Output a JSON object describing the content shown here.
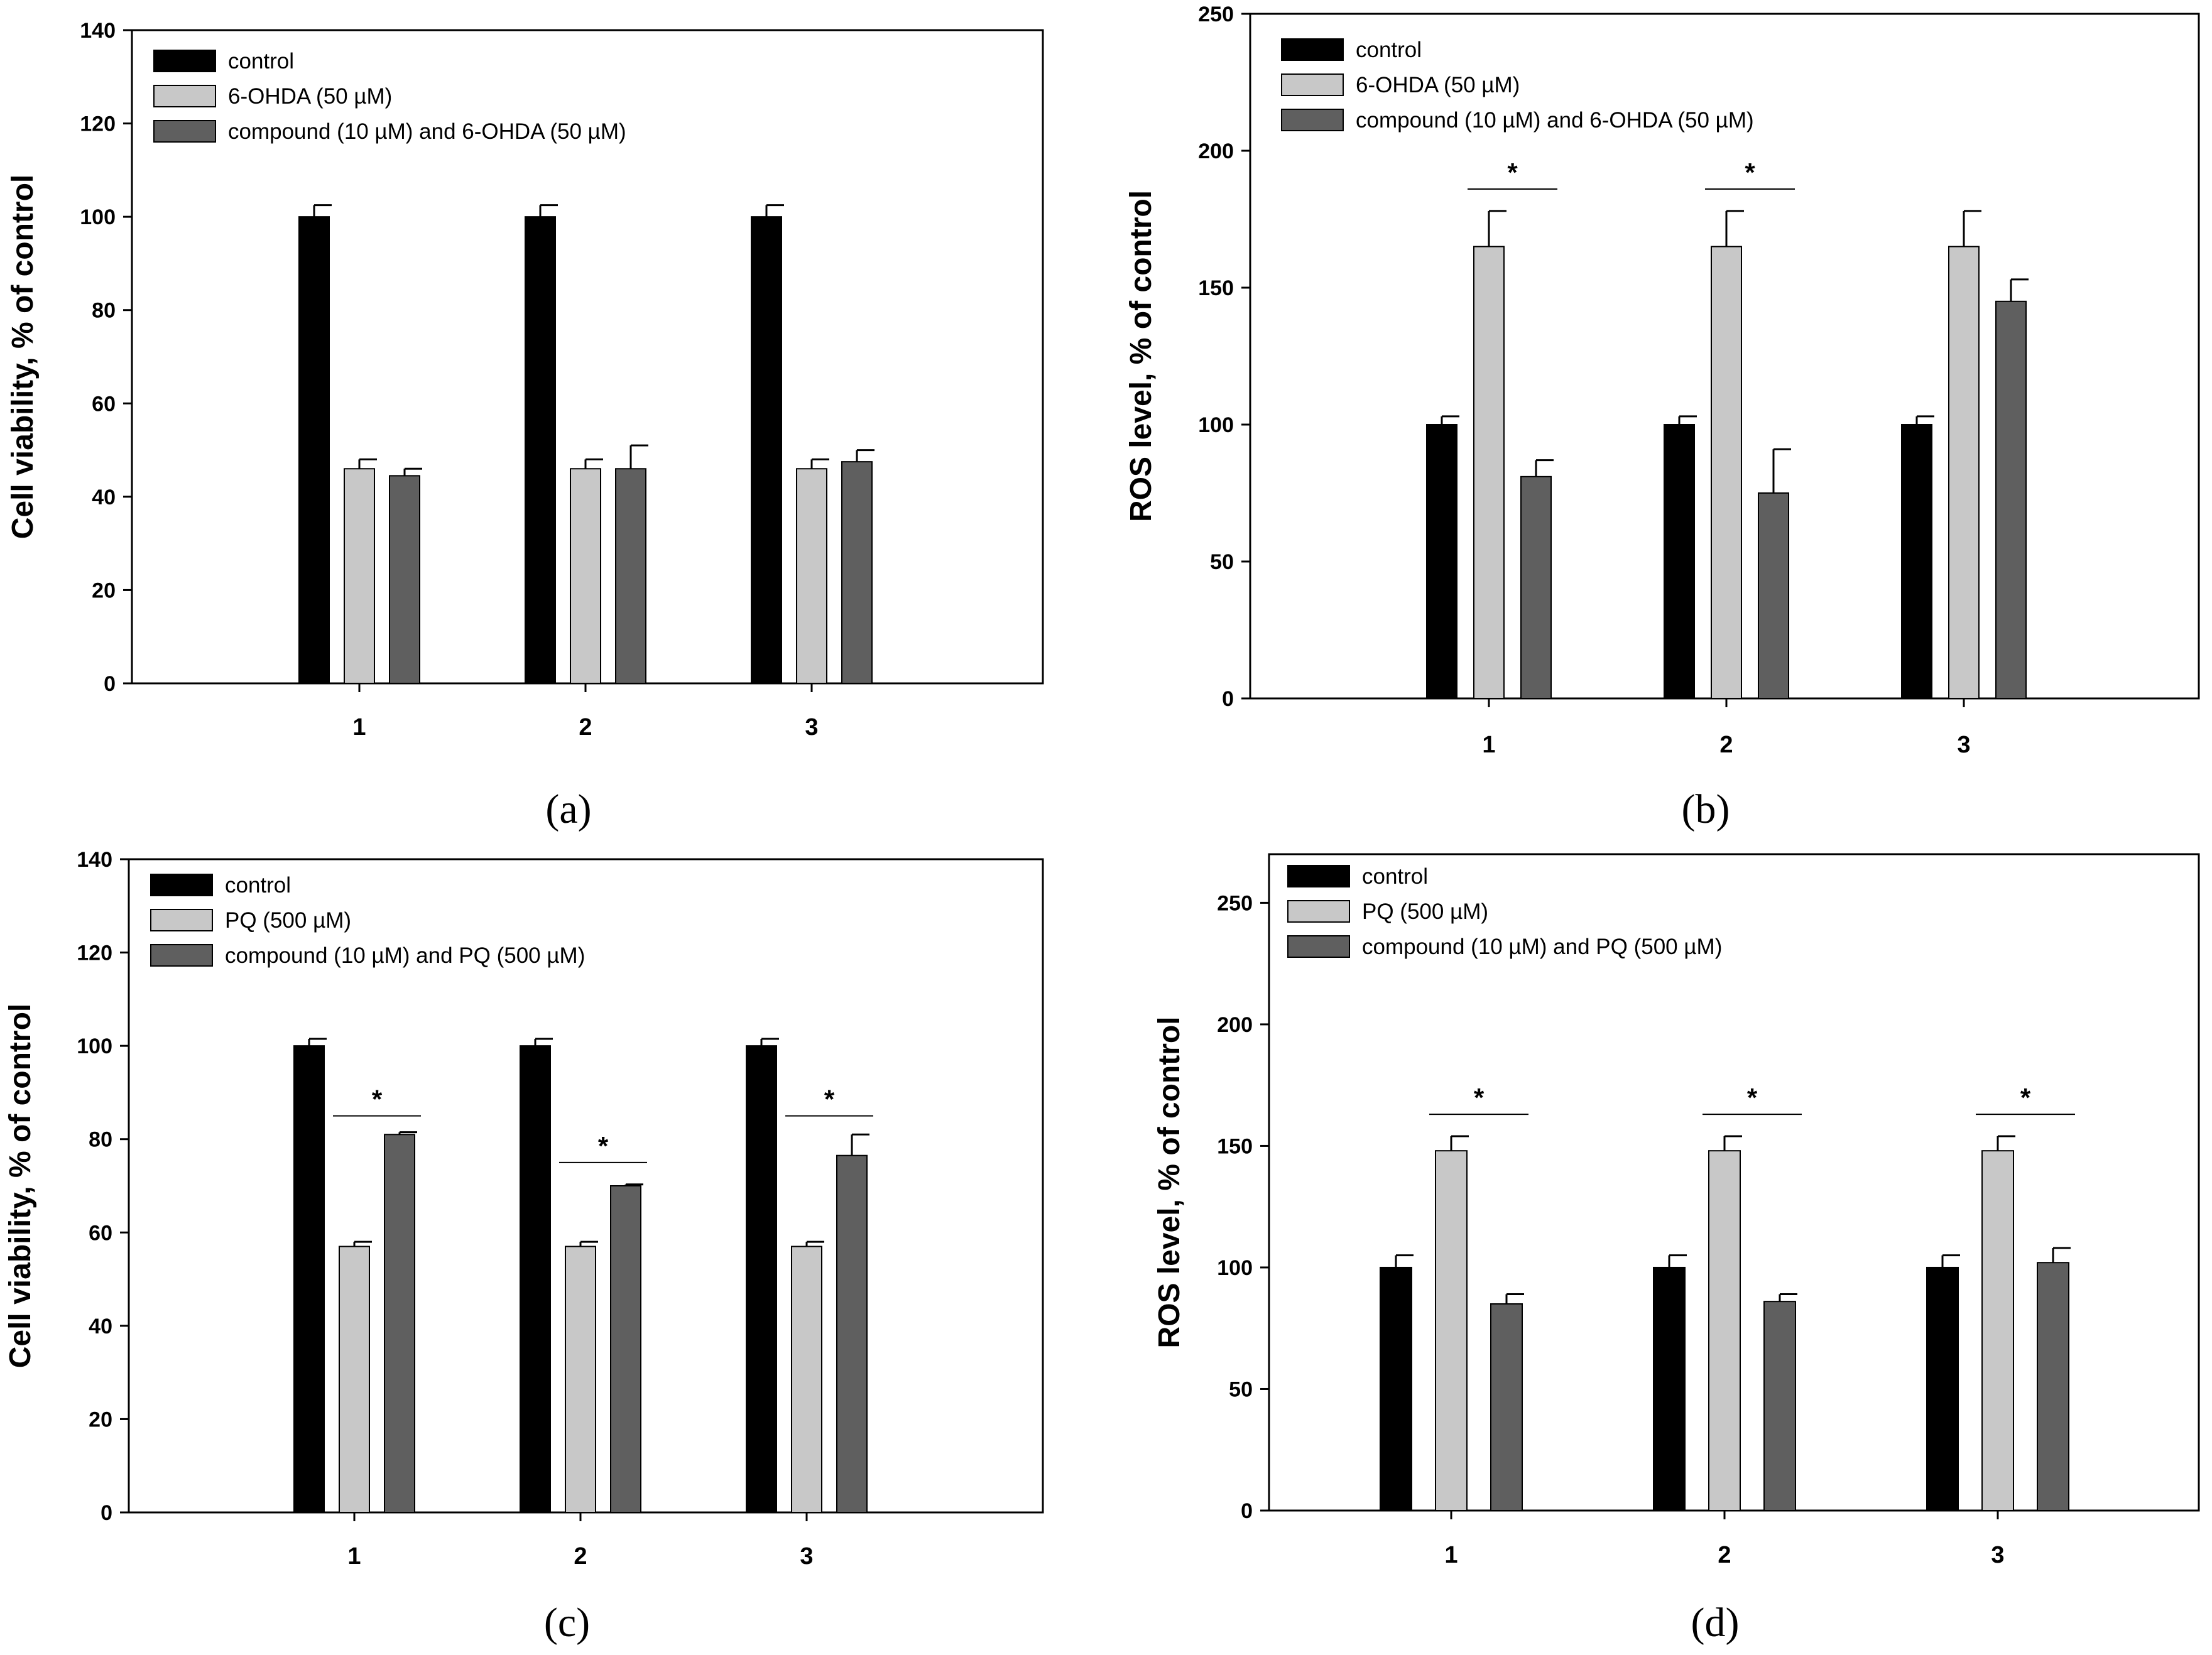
{
  "chart_data": [
    {
      "id": "a",
      "type": "bar",
      "panel_label": "(a)",
      "ylabel": "Cell viability, % of control",
      "ylim": [
        0,
        140
      ],
      "yticks": [
        0,
        20,
        40,
        60,
        80,
        100,
        120,
        140
      ],
      "categories": [
        "1",
        "2",
        "3"
      ],
      "series": [
        {
          "name": "control",
          "color": "#000000",
          "values": [
            100,
            100,
            100
          ],
          "errors": [
            2.5,
            2.5,
            2.5
          ]
        },
        {
          "name": "6-OHDA (50 µM)",
          "color": "#c8c8c8",
          "values": [
            46,
            46,
            46
          ],
          "errors": [
            2,
            2,
            2
          ]
        },
        {
          "name": "compound (10 µM) and 6-OHDA (50 µM)",
          "color": "#5f5f5f",
          "values": [
            44.5,
            46,
            47.5
          ],
          "errors": [
            1.5,
            5,
            2.5
          ]
        }
      ],
      "significance": []
    },
    {
      "id": "b",
      "type": "bar",
      "panel_label": "(b)",
      "ylabel": "ROS level, % of control",
      "ylim": [
        0,
        250
      ],
      "yticks": [
        0,
        50,
        100,
        150,
        200,
        250
      ],
      "categories": [
        "1",
        "2",
        "3"
      ],
      "series": [
        {
          "name": "control",
          "color": "#000000",
          "values": [
            100,
            100,
            100
          ],
          "errors": [
            3,
            3,
            3
          ]
        },
        {
          "name": "6-OHDA (50 µM)",
          "color": "#c8c8c8",
          "values": [
            165,
            165,
            165
          ],
          "errors": [
            13,
            13,
            13
          ]
        },
        {
          "name": "compound (10 µM) and 6-OHDA (50 µM)",
          "color": "#5f5f5f",
          "values": [
            81,
            75,
            145
          ],
          "errors": [
            6,
            16,
            8
          ]
        }
      ],
      "significance": [
        {
          "category": 0,
          "label": "*",
          "y": 186
        },
        {
          "category": 1,
          "label": "*",
          "y": 186
        }
      ]
    },
    {
      "id": "c",
      "type": "bar",
      "panel_label": "(c)",
      "ylabel": "Cell viability, % of control",
      "ylim": [
        0,
        140
      ],
      "yticks": [
        0,
        20,
        40,
        60,
        80,
        100,
        120,
        140
      ],
      "categories": [
        "1",
        "2",
        "3"
      ],
      "series": [
        {
          "name": "control",
          "color": "#000000",
          "values": [
            100,
            100,
            100
          ],
          "errors": [
            1.5,
            1.5,
            1.5
          ]
        },
        {
          "name": "PQ (500 µM)",
          "color": "#c8c8c8",
          "values": [
            57,
            57,
            57
          ],
          "errors": [
            1,
            1,
            1
          ]
        },
        {
          "name": "compound (10 µM) and PQ (500 µM)",
          "color": "#5f5f5f",
          "values": [
            81,
            70,
            76.5
          ],
          "errors": [
            0.5,
            0.3,
            4.5
          ]
        }
      ],
      "significance": [
        {
          "category": 0,
          "label": "*",
          "y": 85
        },
        {
          "category": 1,
          "label": "*",
          "y": 75
        },
        {
          "category": 2,
          "label": "*",
          "y": 85
        }
      ]
    },
    {
      "id": "d",
      "type": "bar",
      "panel_label": "(d)",
      "ylabel": "ROS level, % of control",
      "ylim": [
        0,
        270
      ],
      "yticks": [
        0,
        50,
        100,
        150,
        200,
        250
      ],
      "categories": [
        "1",
        "2",
        "3"
      ],
      "series": [
        {
          "name": "control",
          "color": "#000000",
          "values": [
            100,
            100,
            100
          ],
          "errors": [
            5,
            5,
            5
          ]
        },
        {
          "name": "PQ (500 µM)",
          "color": "#c8c8c8",
          "values": [
            148,
            148,
            148
          ],
          "errors": [
            6,
            6,
            6
          ]
        },
        {
          "name": "compound (10 µM) and PQ (500 µM)",
          "color": "#5f5f5f",
          "values": [
            85,
            86,
            102
          ],
          "errors": [
            4,
            3,
            6
          ]
        }
      ],
      "significance": [
        {
          "category": 0,
          "label": "*",
          "y": 163
        },
        {
          "category": 1,
          "label": "*",
          "y": 163
        },
        {
          "category": 2,
          "label": "*",
          "y": 163
        }
      ]
    }
  ]
}
